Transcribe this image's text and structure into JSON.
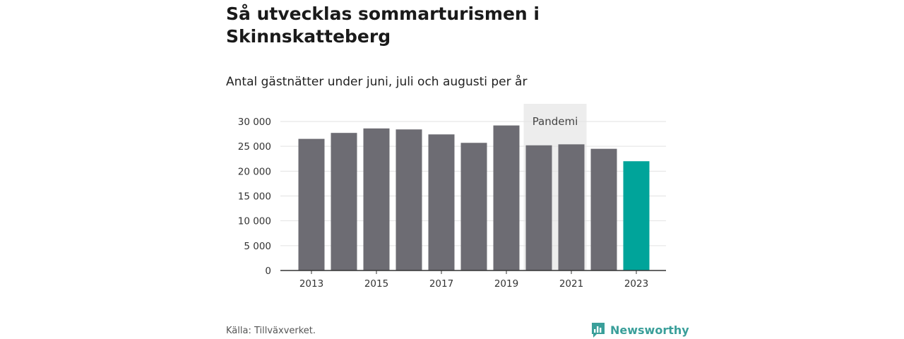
{
  "title": "Så utvecklas sommarturismen i Skinnskatteberg",
  "subtitle": "Antal gästnätter under juni, juli och augusti per år",
  "source": "Källa: Tillväxverket.",
  "brand": {
    "name": "Newsworthy",
    "icon": "newsworthy-logo-icon"
  },
  "colors": {
    "bar": "#6d6c73",
    "highlight": "#00a49a",
    "shade": "#ededed",
    "grid": "#e2e2e2",
    "axis": "#333333"
  },
  "chart_data": {
    "type": "bar",
    "categories": [
      "2013",
      "2014",
      "2015",
      "2016",
      "2017",
      "2018",
      "2019",
      "2020",
      "2021",
      "2022",
      "2023"
    ],
    "values": [
      26500,
      27700,
      28600,
      28400,
      27400,
      25700,
      29200,
      25200,
      25400,
      24500,
      22000
    ],
    "highlight_category": "2023",
    "ylim": [
      0,
      30000
    ],
    "yticks": [
      0,
      5000,
      10000,
      15000,
      20000,
      25000,
      30000
    ],
    "ytick_labels": [
      "0",
      "5 000",
      "10 000",
      "15 000",
      "20 000",
      "25 000",
      "30 000"
    ],
    "xtick_labels": [
      "2013",
      "2015",
      "2017",
      "2019",
      "2021",
      "2023"
    ],
    "grid": true,
    "annotation": {
      "label": "Pandemi",
      "from": "2020",
      "to": "2021"
    }
  }
}
